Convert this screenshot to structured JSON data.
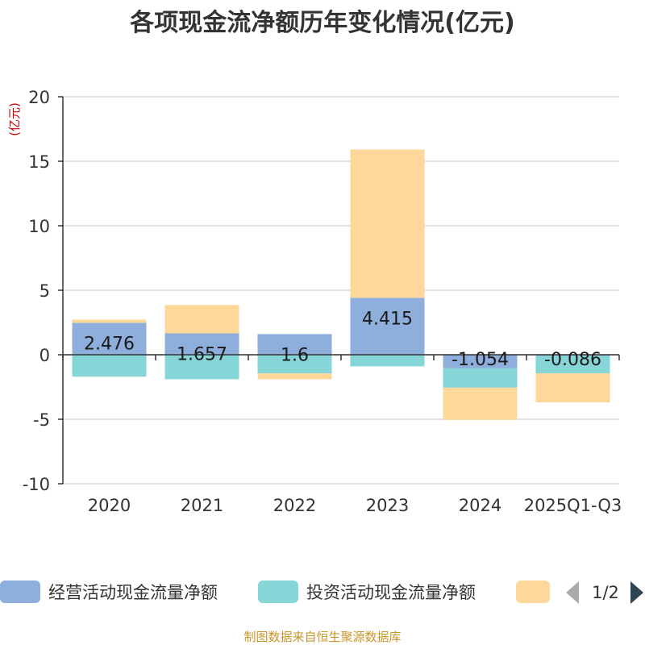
{
  "chart_data": {
    "type": "bar",
    "stacked": true,
    "title": "各项现金流净额历年变化情况(亿元)",
    "ylabel": "(亿元)",
    "ylabel_color": "#cc0000",
    "ylim": [
      -10,
      20
    ],
    "yticks": [
      20,
      15,
      10,
      5,
      0,
      -5,
      -10
    ],
    "grid": true,
    "categories": [
      "2020",
      "2021",
      "2022",
      "2023",
      "2024",
      "2025Q1-Q3"
    ],
    "series": [
      {
        "name": "经营活动现金流量净额",
        "color": "#8eaedc",
        "values": [
          2.476,
          1.657,
          1.6,
          4.415,
          -1.054,
          -0.086
        ],
        "labels": [
          "2.476",
          "1.657",
          "1.6",
          "4.415",
          "-1.054",
          "-0.086"
        ]
      },
      {
        "name": "投资活动现金流量净额",
        "color": "#86d6d8",
        "values": [
          -1.7,
          -1.9,
          -1.45,
          -0.9,
          -1.5,
          -1.35
        ]
      },
      {
        "name": "",
        "color": "#fdd89a",
        "values": [
          0.25,
          2.2,
          -0.45,
          11.5,
          -2.5,
          -2.25
        ]
      }
    ]
  },
  "legend": {
    "page": "1/2",
    "arrow_colors": {
      "prev": "#aaaaaa",
      "next": "#2f4554"
    }
  },
  "footer": {
    "source": "制图数据来自恒生聚源数据库",
    "color": "#c8962a"
  }
}
